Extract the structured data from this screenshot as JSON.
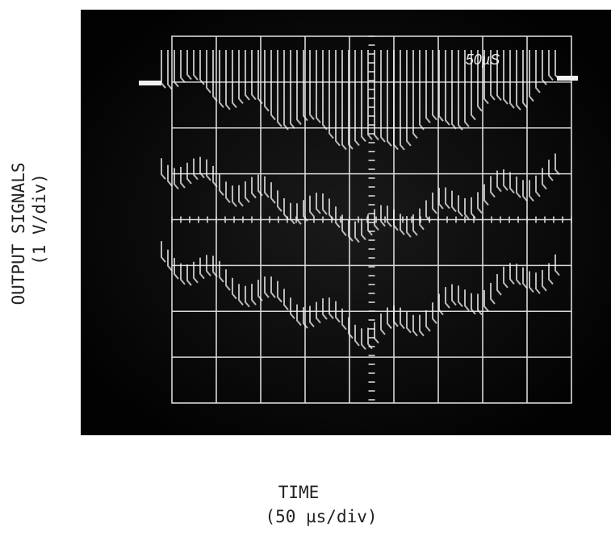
{
  "figure": {
    "y_label": "OUTPUT SIGNALS",
    "y_unit": "(1 V/div)",
    "x_label": "TIME",
    "x_unit": "(50 µs/div)",
    "screen_label": "50µS"
  }
}
